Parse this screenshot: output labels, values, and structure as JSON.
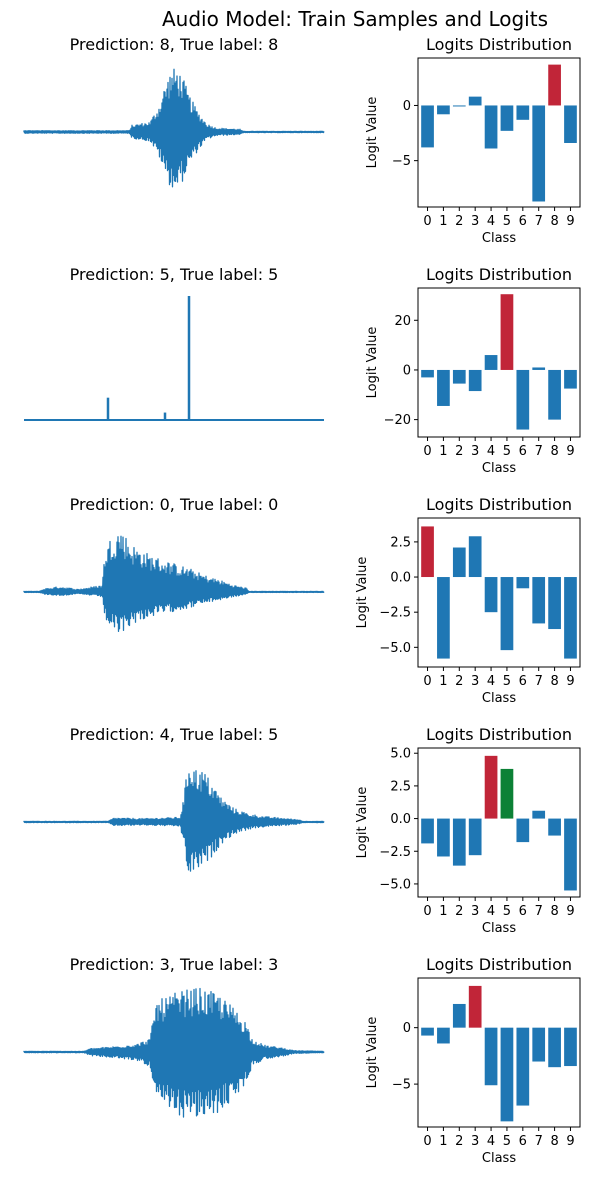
{
  "figure": {
    "title": "Audio Model: Train Samples and Logits"
  },
  "colors": {
    "bar": "#1f77b4",
    "predicted": "#c12538",
    "true_label": "#0c8136",
    "wave": "#1f77b4"
  },
  "chart_data": [
    {
      "type": "line",
      "title": "Prediction: 8, True label: 8",
      "axes_visible": false,
      "envelope": [
        [
          0,
          0.02
        ],
        [
          0.35,
          0.02
        ],
        [
          0.36,
          0.1
        ],
        [
          0.42,
          0.15
        ],
        [
          0.45,
          0.4
        ],
        [
          0.47,
          0.7
        ],
        [
          0.49,
          0.92
        ],
        [
          0.51,
          0.95
        ],
        [
          0.53,
          0.8
        ],
        [
          0.55,
          0.55
        ],
        [
          0.58,
          0.3
        ],
        [
          0.61,
          0.12
        ],
        [
          0.64,
          0.06
        ],
        [
          0.72,
          0.04
        ],
        [
          0.73,
          0.01
        ],
        [
          1,
          0.01
        ]
      ],
      "peak_up": 0.92,
      "peak_down": 0.78
    },
    {
      "type": "bar",
      "title": "Logits Distribution",
      "xlabel": "Class",
      "ylabel": "Logit Value",
      "categories": [
        "0",
        "1",
        "2",
        "3",
        "4",
        "5",
        "6",
        "7",
        "8",
        "9"
      ],
      "values": [
        -3.8,
        -0.8,
        0.0,
        0.8,
        -3.9,
        -2.3,
        -1.3,
        -8.7,
        3.7,
        -3.4
      ],
      "predicted": 8,
      "true_label": 8,
      "ylim": [
        -9.2,
        4.3
      ],
      "yticks": [
        0,
        -5
      ]
    },
    {
      "type": "line",
      "title": "Prediction: 5, True label: 5",
      "axes_visible": false,
      "spikes": [
        [
          0.28,
          0.18
        ],
        [
          0.47,
          0.06
        ],
        [
          0.55,
          1.0
        ]
      ]
    },
    {
      "type": "bar",
      "title": "Logits Distribution",
      "xlabel": "Class",
      "ylabel": "Logit Value",
      "categories": [
        "0",
        "1",
        "2",
        "3",
        "4",
        "5",
        "6",
        "7",
        "8",
        "9"
      ],
      "values": [
        -3.0,
        -14.5,
        -5.5,
        -8.5,
        6.0,
        30.5,
        -24.0,
        1.0,
        -20.0,
        -7.5
      ],
      "predicted": 5,
      "true_label": 5,
      "ylim": [
        -27,
        33
      ],
      "yticks": [
        20,
        0,
        -20
      ]
    },
    {
      "type": "line",
      "title": "Prediction: 0, True label: 0",
      "axes_visible": false,
      "envelope": [
        [
          0,
          0.01
        ],
        [
          0.05,
          0.01
        ],
        [
          0.07,
          0.05
        ],
        [
          0.12,
          0.08
        ],
        [
          0.18,
          0.04
        ],
        [
          0.22,
          0.07
        ],
        [
          0.26,
          0.1
        ],
        [
          0.27,
          0.6
        ],
        [
          0.29,
          0.82
        ],
        [
          0.32,
          0.95
        ],
        [
          0.36,
          0.7
        ],
        [
          0.42,
          0.55
        ],
        [
          0.48,
          0.45
        ],
        [
          0.55,
          0.35
        ],
        [
          0.6,
          0.25
        ],
        [
          0.65,
          0.18
        ],
        [
          0.7,
          0.1
        ],
        [
          0.74,
          0.06
        ],
        [
          0.75,
          0.01
        ],
        [
          1,
          0.01
        ]
      ],
      "peak_up": 0.95,
      "peak_down": 0.6
    },
    {
      "type": "bar",
      "title": "Logits Distribution",
      "xlabel": "Class",
      "ylabel": "Logit Value",
      "categories": [
        "0",
        "1",
        "2",
        "3",
        "4",
        "5",
        "6",
        "7",
        "8",
        "9"
      ],
      "values": [
        3.6,
        -5.8,
        2.1,
        2.9,
        -2.5,
        -5.2,
        -0.8,
        -3.3,
        -3.7,
        -5.8
      ],
      "predicted": 0,
      "true_label": 0,
      "ylim": [
        -6.4,
        4.2
      ],
      "yticks": [
        2.5,
        0.0,
        -2.5,
        -5.0
      ]
    },
    {
      "type": "line",
      "title": "Prediction: 4, True label: 5",
      "axes_visible": false,
      "envelope": [
        [
          0,
          0.01
        ],
        [
          0.28,
          0.01
        ],
        [
          0.3,
          0.06
        ],
        [
          0.4,
          0.05
        ],
        [
          0.52,
          0.07
        ],
        [
          0.53,
          0.3
        ],
        [
          0.55,
          0.95
        ],
        [
          0.57,
          0.8
        ],
        [
          0.6,
          0.75
        ],
        [
          0.63,
          0.55
        ],
        [
          0.66,
          0.35
        ],
        [
          0.7,
          0.2
        ],
        [
          0.75,
          0.12
        ],
        [
          0.8,
          0.08
        ],
        [
          0.88,
          0.05
        ],
        [
          0.92,
          0.03
        ],
        [
          0.93,
          0.01
        ],
        [
          1,
          0.01
        ]
      ],
      "peak_up": 0.95,
      "peak_down": 0.8
    },
    {
      "type": "bar",
      "title": "Logits Distribution",
      "xlabel": "Class",
      "ylabel": "Logit Value",
      "categories": [
        "0",
        "1",
        "2",
        "3",
        "4",
        "5",
        "6",
        "7",
        "8",
        "9"
      ],
      "values": [
        -1.9,
        -2.9,
        -3.6,
        -2.8,
        4.8,
        3.8,
        -1.8,
        0.6,
        -1.3,
        -5.5
      ],
      "predicted": 4,
      "true_label": 5,
      "ylim": [
        -6.0,
        5.4
      ],
      "yticks": [
        5.0,
        2.5,
        0.0,
        -2.5,
        -5.0
      ]
    },
    {
      "type": "line",
      "title": "Prediction: 3, True label: 3",
      "axes_visible": false,
      "envelope": [
        [
          0,
          0.01
        ],
        [
          0.2,
          0.01
        ],
        [
          0.22,
          0.05
        ],
        [
          0.3,
          0.08
        ],
        [
          0.38,
          0.12
        ],
        [
          0.42,
          0.2
        ],
        [
          0.44,
          0.75
        ],
        [
          0.47,
          0.8
        ],
        [
          0.52,
          0.9
        ],
        [
          0.58,
          0.95
        ],
        [
          0.65,
          0.85
        ],
        [
          0.7,
          0.65
        ],
        [
          0.74,
          0.45
        ],
        [
          0.76,
          0.2
        ],
        [
          0.8,
          0.1
        ],
        [
          0.86,
          0.06
        ],
        [
          0.9,
          0.02
        ],
        [
          1,
          0.01
        ]
      ],
      "peak_up": 0.95,
      "peak_down": 0.95
    },
    {
      "type": "bar",
      "title": "Logits Distribution",
      "xlabel": "Class",
      "ylabel": "Logit Value",
      "categories": [
        "0",
        "1",
        "2",
        "3",
        "4",
        "5",
        "6",
        "7",
        "8",
        "9"
      ],
      "values": [
        -0.7,
        -1.4,
        2.1,
        3.7,
        -5.1,
        -8.3,
        -6.9,
        -3.0,
        -3.5,
        -3.4
      ],
      "predicted": 3,
      "true_label": 3,
      "ylim": [
        -8.8,
        4.4
      ],
      "yticks": [
        0,
        -5
      ]
    }
  ]
}
